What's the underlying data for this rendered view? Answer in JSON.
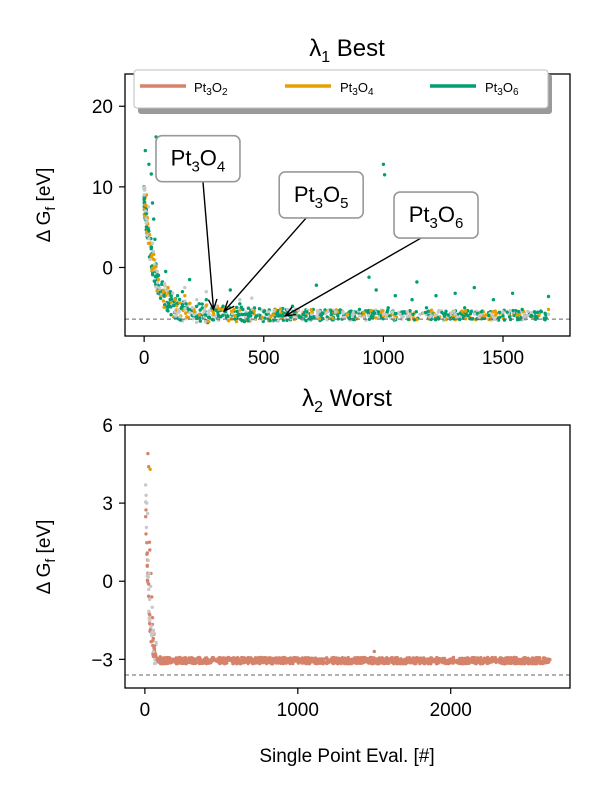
{
  "chart_data": [
    {
      "type": "scatter",
      "title_base": "λ",
      "title_sub": "1",
      "title_rest": " Best",
      "ylabel_base": "Δ G",
      "ylabel_sub": "f",
      "ylabel_rest": " [eV]",
      "xlabel": "",
      "xlim": [
        -80,
        1780
      ],
      "ylim": [
        -8.5,
        24
      ],
      "xticks": [
        "0",
        "500",
        "1000",
        "1500"
      ],
      "xtick_values": [
        0,
        500,
        1000,
        1500
      ],
      "yticks": [
        "0",
        "10",
        "20"
      ],
      "ytick_values": [
        0,
        10,
        20
      ],
      "reference_line": -6.4,
      "legend_position": "top",
      "series": [
        {
          "name": "Pt3O2",
          "label_parts": [
            "Pt",
            "3",
            "O",
            "2"
          ],
          "color": "#d5836b"
        },
        {
          "name": "Pt3O4",
          "label_parts": [
            "Pt",
            "3",
            "O",
            "4"
          ],
          "color": "#e69f00"
        },
        {
          "name": "Pt3O6",
          "label_parts": [
            "Pt",
            "3",
            "O",
            "6"
          ],
          "color": "#009e73"
        }
      ],
      "other_color": "#c8c8c8",
      "points": {
        "Pt3O6": [
          [
            5,
            14.5
          ],
          [
            20,
            12.8
          ],
          [
            30,
            11.6
          ],
          [
            35,
            8
          ],
          [
            40,
            6
          ],
          [
            45,
            3.5
          ],
          [
            50,
            16.2
          ],
          [
            55,
            14.5
          ],
          [
            60,
            -1
          ],
          [
            70,
            11.5
          ],
          [
            75,
            -3
          ],
          [
            90,
            -0.5
          ],
          [
            110,
            -3
          ],
          [
            125,
            -4.2
          ],
          [
            140,
            -3.5
          ],
          [
            160,
            -3
          ],
          [
            190,
            -1.5
          ],
          [
            230,
            -4.5
          ],
          [
            260,
            -4
          ],
          [
            300,
            -5.3
          ],
          [
            330,
            -4.8
          ],
          [
            360,
            -2.8
          ],
          [
            400,
            -4.5
          ],
          [
            430,
            -5.8
          ],
          [
            470,
            -6
          ],
          [
            500,
            -5.5
          ],
          [
            540,
            -5.8
          ],
          [
            580,
            -6
          ],
          [
            620,
            -4.8
          ],
          [
            650,
            -6.2
          ],
          [
            680,
            -5.5
          ],
          [
            720,
            -2.2
          ],
          [
            740,
            -6
          ],
          [
            780,
            -5.3
          ],
          [
            810,
            -6
          ],
          [
            860,
            -5.5
          ],
          [
            900,
            -5.2
          ],
          [
            940,
            -1.2
          ],
          [
            970,
            -2.8
          ],
          [
            1000,
            12.8
          ],
          [
            1005,
            11.5
          ],
          [
            1020,
            -5
          ],
          [
            1050,
            -3.5
          ],
          [
            1090,
            -5.5
          ],
          [
            1120,
            -4
          ],
          [
            1140,
            -1.8
          ],
          [
            1180,
            -5
          ],
          [
            1220,
            -3.5
          ],
          [
            1260,
            -5.7
          ],
          [
            1300,
            -3.2
          ],
          [
            1340,
            -5
          ],
          [
            1380,
            -2.5
          ],
          [
            1410,
            -5.5
          ],
          [
            1460,
            -4
          ],
          [
            1500,
            -6
          ],
          [
            1540,
            -3.2
          ],
          [
            1580,
            -5.2
          ],
          [
            1620,
            -6
          ],
          [
            1660,
            -5.5
          ],
          [
            1690,
            -3.6
          ]
        ],
        "Pt3O4": [
          [
            10,
            9
          ],
          [
            25,
            3
          ],
          [
            40,
            1
          ],
          [
            60,
            -1.5
          ],
          [
            80,
            -3
          ],
          [
            100,
            -2.5
          ],
          [
            130,
            -4
          ],
          [
            170,
            -3.5
          ],
          [
            210,
            -5.5
          ],
          [
            260,
            -4.7
          ],
          [
            290,
            -5.8
          ],
          [
            330,
            -5.2
          ],
          [
            380,
            -6
          ],
          [
            460,
            -5.4
          ],
          [
            540,
            -5.9
          ],
          [
            700,
            -5.6
          ],
          [
            850,
            -5.8
          ],
          [
            1000,
            -6
          ],
          [
            1200,
            -5.4
          ],
          [
            1420,
            -6
          ],
          [
            1560,
            -5.9
          ],
          [
            1690,
            -5.2
          ]
        ],
        "other": [
          [
            0,
            9
          ],
          [
            5,
            7
          ],
          [
            12,
            4
          ],
          [
            18,
            7.5
          ],
          [
            25,
            1
          ],
          [
            35,
            3
          ],
          [
            55,
            -0.5
          ],
          [
            85,
            -2
          ],
          [
            120,
            -3.2
          ],
          [
            170,
            -2.5
          ],
          [
            220,
            -4
          ],
          [
            260,
            -3
          ],
          [
            300,
            -4.8
          ],
          [
            350,
            -5
          ],
          [
            400,
            -4
          ],
          [
            450,
            -3.8
          ],
          [
            520,
            -5.5
          ],
          [
            600,
            -5.2
          ],
          [
            700,
            -5.8
          ],
          [
            800,
            -5.5
          ],
          [
            900,
            -6
          ],
          [
            1000,
            -5.8
          ],
          [
            1100,
            -5.5
          ],
          [
            1200,
            -6
          ],
          [
            1300,
            -5.8
          ],
          [
            1400,
            -6
          ],
          [
            1500,
            -5.5
          ],
          [
            1600,
            -6
          ],
          [
            1690,
            -5.8
          ]
        ]
      },
      "annotations": [
        {
          "parts": [
            "Pt",
            "3",
            "O",
            "4"
          ],
          "xy": [
            290,
            -5.2
          ],
          "xytext": [
            225,
            13.5
          ]
        },
        {
          "parts": [
            "Pt",
            "3",
            "O",
            "5"
          ],
          "xy": [
            335,
            -5.4
          ],
          "xytext": [
            740,
            9
          ]
        },
        {
          "parts": [
            "Pt",
            "3",
            "O",
            "6"
          ],
          "xy": [
            590,
            -6.0
          ],
          "xytext": [
            1220,
            6.5
          ]
        }
      ]
    },
    {
      "type": "scatter",
      "title_base": "λ",
      "title_sub": "2",
      "title_rest": " Worst",
      "ylabel_base": "Δ G",
      "ylabel_sub": "f",
      "ylabel_rest": " [eV]",
      "xlabel": "Single Point Eval. [#]",
      "xlim": [
        -130,
        2780
      ],
      "ylim": [
        -4.1,
        6
      ],
      "xticks": [
        "0",
        "1000",
        "2000"
      ],
      "xtick_values": [
        0,
        1000,
        2000
      ],
      "yticks": [
        "−3",
        "0",
        "3",
        "6"
      ],
      "ytick_values": [
        -3,
        0,
        3,
        6
      ],
      "reference_line": -3.6,
      "series": [
        {
          "name": "Pt3O2",
          "color": "#d5836b"
        },
        {
          "name": "Pt3O4",
          "color": "#e69f00"
        }
      ],
      "other_color": "#c8c8c8",
      "points": {
        "Pt3O2": [
          [
            20,
            4.9
          ],
          [
            25,
            4.4
          ],
          [
            30,
            1.5
          ],
          [
            32,
            1.2
          ],
          [
            40,
            0.3
          ],
          [
            45,
            -0.6
          ],
          [
            50,
            -1.4
          ],
          [
            55,
            -2.2
          ],
          [
            62,
            -2.6
          ],
          [
            70,
            -2.8
          ],
          [
            80,
            -3
          ],
          [
            100,
            -2.9
          ],
          [
            200,
            -3
          ],
          [
            300,
            -3.1
          ],
          [
            400,
            -3
          ],
          [
            500,
            -3.1
          ],
          [
            700,
            -3
          ],
          [
            900,
            -3.1
          ],
          [
            1100,
            -3.05
          ],
          [
            1300,
            -3.1
          ],
          [
            1500,
            -2.7
          ],
          [
            1500,
            -3
          ],
          [
            1700,
            -3.1
          ],
          [
            1900,
            -3
          ],
          [
            2100,
            -3.1
          ],
          [
            2300,
            -3.05
          ],
          [
            2500,
            -3.1
          ],
          [
            2640,
            -3.1
          ]
        ],
        "Pt3O4": [
          [
            35,
            4.3
          ]
        ],
        "other": [
          [
            5,
            3.7
          ],
          [
            8,
            3.3
          ],
          [
            12,
            3
          ],
          [
            18,
            2.6
          ],
          [
            22,
            0.8
          ],
          [
            28,
            0.3
          ],
          [
            38,
            -0.2
          ],
          [
            48,
            -1
          ],
          [
            55,
            -2
          ]
        ]
      },
      "band": {
        "x_start": 80,
        "x_end": 2650,
        "y_center": -3.05,
        "y_spread": 0.12
      }
    }
  ]
}
